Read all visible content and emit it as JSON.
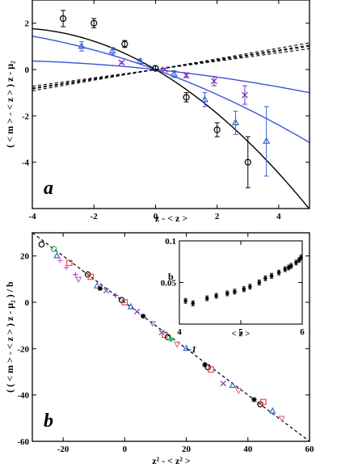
{
  "chart_data": [
    {
      "id": "a",
      "type": "scatter",
      "panel_label": "a",
      "xlabel": "z - < z >",
      "ylabel": "( < m > - < z > ) z -   μ₂",
      "xlim": [
        -4,
        5
      ],
      "ylim": [
        -6,
        3
      ],
      "xticks": [
        -4,
        -2,
        0,
        2,
        4
      ],
      "yticks": [
        -4,
        -2,
        0,
        2
      ],
      "series": [
        {
          "marker": "circle",
          "color": "#000000",
          "x": [
            -3,
            -2,
            -1,
            0,
            1,
            2,
            3
          ],
          "y": [
            2.2,
            2.0,
            1.1,
            0.05,
            -1.2,
            -2.6,
            -4.0
          ],
          "err": [
            0.35,
            0.2,
            0.15,
            0.1,
            0.2,
            0.3,
            1.1
          ]
        },
        {
          "marker": "triangle",
          "color": "#3a66cc",
          "x": [
            -2.4,
            -1.4,
            -0.5,
            0.6,
            1.6,
            2.6,
            3.6
          ],
          "y": [
            1.0,
            0.8,
            0.35,
            -0.2,
            -1.3,
            -2.3,
            -3.1
          ],
          "err": [
            0.2,
            0.15,
            0.1,
            0.15,
            0.3,
            0.5,
            1.5
          ]
        },
        {
          "marker": "x",
          "color": "#7b2fbf",
          "x": [
            -1.1,
            0.3,
            1.0,
            1.9,
            2.9
          ],
          "y": [
            0.3,
            0.0,
            -0.25,
            -0.5,
            -1.1
          ],
          "err": [
            0.05,
            0.05,
            0.1,
            0.2,
            0.4
          ]
        }
      ],
      "curves": [
        {
          "kind": "solid",
          "color": "#000000",
          "a": -0.085,
          "b": -0.78,
          "c": 0.0
        },
        {
          "kind": "solid",
          "color": "#3a55d9",
          "a": -0.03,
          "b": -0.48,
          "c": 0.0
        },
        {
          "kind": "solid",
          "color": "#3a55d9",
          "a": -0.012,
          "b": -0.14,
          "c": 0.0
        },
        {
          "kind": "dashed",
          "color": "#000000",
          "a": 0,
          "b": 0.23,
          "c": 0.0
        },
        {
          "kind": "dashed",
          "color": "#000000",
          "a": 0,
          "b": 0.2,
          "c": 0.0
        },
        {
          "kind": "dashed",
          "color": "#000000",
          "a": 0,
          "b": 0.18,
          "c": 0.0
        },
        {
          "kind": "dashed",
          "color": "#000000",
          "a": 0,
          "b": 0.21,
          "c": 0.0
        }
      ]
    },
    {
      "id": "b",
      "type": "scatter",
      "panel_label": "b",
      "xlabel": "z² - < z² >",
      "ylabel": "( ( < m > - < z > ) z -   μ₂ ) / b",
      "xlim": [
        -30,
        60
      ],
      "ylim": [
        -60,
        30
      ],
      "xticks": [
        -20,
        0,
        20,
        40,
        60
      ],
      "yticks": [
        -60,
        -40,
        -20,
        0,
        20
      ],
      "annotation": "-1",
      "fit_line": {
        "slope": -1.0,
        "intercept": 0.0
      },
      "points": [
        {
          "x": -27,
          "y": 25,
          "m": "circle",
          "c": "#000000"
        },
        {
          "x": -23,
          "y": 23,
          "m": "circle",
          "c": "#26b870"
        },
        {
          "x": -22,
          "y": 20,
          "m": "triangle",
          "c": "#3a66cc"
        },
        {
          "x": -21,
          "y": 18,
          "m": "plus",
          "c": "#e066e0"
        },
        {
          "x": -19,
          "y": 15,
          "m": "plus",
          "c": "#cc4fcc"
        },
        {
          "x": -18,
          "y": 17,
          "m": "square",
          "c": "#e84a4a"
        },
        {
          "x": -16,
          "y": 12,
          "m": "plus",
          "c": "#cc44cc"
        },
        {
          "x": -15,
          "y": 10,
          "m": "tridown",
          "c": "#b07ad6"
        },
        {
          "x": -12,
          "y": 12,
          "m": "circle",
          "c": "#000000"
        },
        {
          "x": -11,
          "y": 11,
          "m": "square",
          "c": "#e84a4a"
        },
        {
          "x": -9,
          "y": 7,
          "m": "triangle",
          "c": "#3a66cc"
        },
        {
          "x": -8,
          "y": 6,
          "m": "asterisk",
          "c": "#000000"
        },
        {
          "x": -6,
          "y": 5,
          "m": "x",
          "c": "#6a4fcf"
        },
        {
          "x": -3,
          "y": 3,
          "m": "plus",
          "c": "#7b2fbf"
        },
        {
          "x": -1,
          "y": 1,
          "m": "circle",
          "c": "#000000"
        },
        {
          "x": 0,
          "y": 0,
          "m": "square",
          "c": "#e84a4a"
        },
        {
          "x": 2,
          "y": -2,
          "m": "triangle",
          "c": "#3a66cc"
        },
        {
          "x": 4,
          "y": -4,
          "m": "x",
          "c": "#7b2fbf"
        },
        {
          "x": 6,
          "y": -6,
          "m": "asterisk",
          "c": "#000000"
        },
        {
          "x": 9,
          "y": -9,
          "m": "tridown",
          "c": "#b07ad6"
        },
        {
          "x": 12,
          "y": -13,
          "m": "x",
          "c": "#3a66cc"
        },
        {
          "x": 13,
          "y": -14,
          "m": "square",
          "c": "#e84a4a"
        },
        {
          "x": 14,
          "y": -15,
          "m": "circle",
          "c": "#000000"
        },
        {
          "x": 15,
          "y": -16,
          "m": "asterisk",
          "c": "#26b870"
        },
        {
          "x": 17,
          "y": -18,
          "m": "tridown",
          "c": "#d67a9a"
        },
        {
          "x": 20,
          "y": -20,
          "m": "triangle",
          "c": "#3a66cc"
        },
        {
          "x": 26,
          "y": -27,
          "m": "asterisk",
          "c": "#000000"
        },
        {
          "x": 27,
          "y": -28,
          "m": "circle",
          "c": "#000000"
        },
        {
          "x": 28,
          "y": -29,
          "m": "square",
          "c": "#e84a4a"
        },
        {
          "x": 32,
          "y": -35,
          "m": "x",
          "c": "#7b2fbf"
        },
        {
          "x": 35,
          "y": -36,
          "m": "triangle",
          "c": "#3a66cc"
        },
        {
          "x": 37,
          "y": -38,
          "m": "tridown",
          "c": "#d67a9a"
        },
        {
          "x": 42,
          "y": -42,
          "m": "asterisk",
          "c": "#000000"
        },
        {
          "x": 44,
          "y": -44,
          "m": "circle",
          "c": "#000000"
        },
        {
          "x": 45,
          "y": -43,
          "m": "square",
          "c": "#e84a4a"
        },
        {
          "x": 48,
          "y": -47,
          "m": "triangle",
          "c": "#3a66cc"
        },
        {
          "x": 51,
          "y": -50,
          "m": "tridown",
          "c": "#d67a9a"
        }
      ],
      "inset": {
        "type": "scatter",
        "xlabel": "< z >",
        "ylabel": "b",
        "xlim": [
          4,
          6
        ],
        "ylim": [
          0,
          0.1
        ],
        "xticks": [
          4,
          5,
          6
        ],
        "yticks": [
          0.05,
          0.1
        ],
        "ytick_labels": [
          "0.05",
          "0.1"
        ],
        "x": [
          4.1,
          4.22,
          4.45,
          4.6,
          4.78,
          4.9,
          5.05,
          5.15,
          5.3,
          5.4,
          5.5,
          5.62,
          5.72,
          5.78,
          5.82,
          5.9,
          5.95,
          5.98
        ],
        "y": [
          0.028,
          0.025,
          0.031,
          0.034,
          0.037,
          0.039,
          0.042,
          0.045,
          0.05,
          0.055,
          0.058,
          0.062,
          0.066,
          0.068,
          0.07,
          0.074,
          0.077,
          0.08
        ]
      }
    }
  ]
}
